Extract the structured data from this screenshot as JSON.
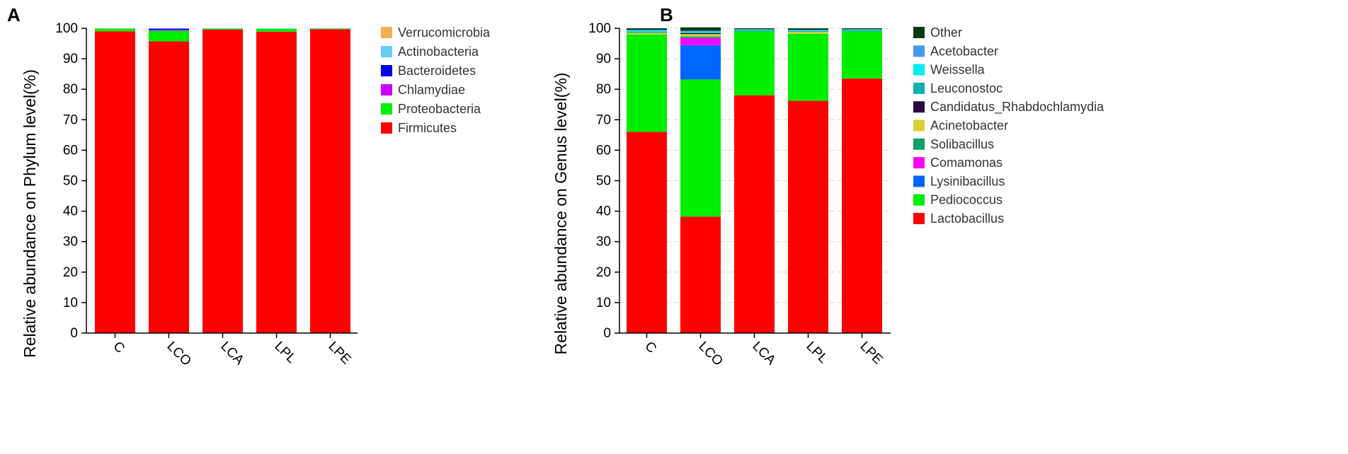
{
  "figure": {
    "panels": [
      {
        "letter": "A"
      },
      {
        "letter": "B"
      }
    ]
  },
  "chart_data": [
    {
      "type": "bar",
      "stacked": true,
      "panel": "A",
      "title": "",
      "xlabel": "",
      "ylabel": "Relative abundance on Phylum level(%)",
      "ylim": [
        0,
        100
      ],
      "yticks": [
        0,
        10,
        20,
        30,
        40,
        50,
        60,
        70,
        80,
        90,
        100
      ],
      "grid": false,
      "legend_position": "right",
      "categories": [
        "C",
        "LCO",
        "LCA",
        "LPL",
        "LPE"
      ],
      "series": [
        {
          "name": "Firmicutes",
          "color": "#ff0000",
          "values": [
            99.0,
            95.7,
            99.6,
            98.9,
            99.7
          ]
        },
        {
          "name": "Proteobacteria",
          "color": "#00ee00",
          "values": [
            0.9,
            3.5,
            0.3,
            0.9,
            0.2
          ]
        },
        {
          "name": "Chlamydiae",
          "color": "#cc00ff",
          "values": [
            0.0,
            0.3,
            0.0,
            0.0,
            0.0
          ]
        },
        {
          "name": "Bacteroidetes",
          "color": "#0000ee",
          "values": [
            0.0,
            0.4,
            0.0,
            0.0,
            0.0
          ]
        },
        {
          "name": "Actinobacteria",
          "color": "#66ccf0",
          "values": [
            0.1,
            0.1,
            0.1,
            0.2,
            0.1
          ]
        },
        {
          "name": "Verrucomicrobia",
          "color": "#f0b050",
          "values": [
            0.0,
            0.0,
            0.0,
            0.0,
            0.0
          ]
        }
      ],
      "legend": [
        "Verrucomicrobia",
        "Actinobacteria",
        "Bacteroidetes",
        "Chlamydiae",
        "Proteobacteria",
        "Firmicutes"
      ]
    },
    {
      "type": "bar",
      "stacked": true,
      "panel": "B",
      "title": "",
      "xlabel": "",
      "ylabel": "Relative abundance on Genus level(%)",
      "ylim": [
        0,
        100
      ],
      "yticks": [
        0,
        10,
        20,
        30,
        40,
        50,
        60,
        70,
        80,
        90,
        100
      ],
      "grid": true,
      "legend_position": "right",
      "categories": [
        "C",
        "LCO",
        "LCA",
        "LPL",
        "LPE"
      ],
      "series": [
        {
          "name": "Lactobacillus",
          "color": "#ff0000",
          "values": [
            66.0,
            38.2,
            78.0,
            76.2,
            83.5
          ]
        },
        {
          "name": "Pediococcus",
          "color": "#00ee00",
          "values": [
            32.0,
            45.0,
            21.0,
            22.0,
            15.5
          ]
        },
        {
          "name": "Lysinibacillus",
          "color": "#0066ff",
          "values": [
            0.0,
            11.3,
            0.0,
            0.0,
            0.0
          ]
        },
        {
          "name": "Comamonas",
          "color": "#ff00ff",
          "values": [
            0.0,
            2.3,
            0.0,
            0.0,
            0.0
          ]
        },
        {
          "name": "Solibacillus",
          "color": "#11a066",
          "values": [
            0.0,
            0.5,
            0.0,
            0.0,
            0.0
          ]
        },
        {
          "name": "Acinetobacter",
          "color": "#d8d030",
          "values": [
            0.5,
            0.8,
            0.0,
            0.6,
            0.0
          ]
        },
        {
          "name": "Candidatus_Rhabdochlamydia",
          "color": "#2a0a40",
          "values": [
            0.0,
            0.3,
            0.0,
            0.0,
            0.0
          ]
        },
        {
          "name": "Leuconostoc",
          "color": "#10b0b0",
          "values": [
            0.4,
            0.3,
            0.4,
            0.3,
            0.4
          ]
        },
        {
          "name": "Weissella",
          "color": "#00eeee",
          "values": [
            0.3,
            0.2,
            0.2,
            0.2,
            0.2
          ]
        },
        {
          "name": "Acetobacter",
          "color": "#4499ee",
          "values": [
            0.3,
            0.3,
            0.1,
            0.2,
            0.1
          ]
        },
        {
          "name": "Other",
          "color": "#0a3a10",
          "values": [
            0.5,
            1.1,
            0.3,
            0.5,
            0.3
          ]
        }
      ],
      "legend": [
        "Other",
        "Acetobacter",
        "Weissella",
        "Leuconostoc",
        "Candidatus_Rhabdochlamydia",
        "Acinetobacter",
        "Solibacillus",
        "Comamonas",
        "Lysinibacillus",
        "Pediococcus",
        "Lactobacillus"
      ]
    }
  ]
}
